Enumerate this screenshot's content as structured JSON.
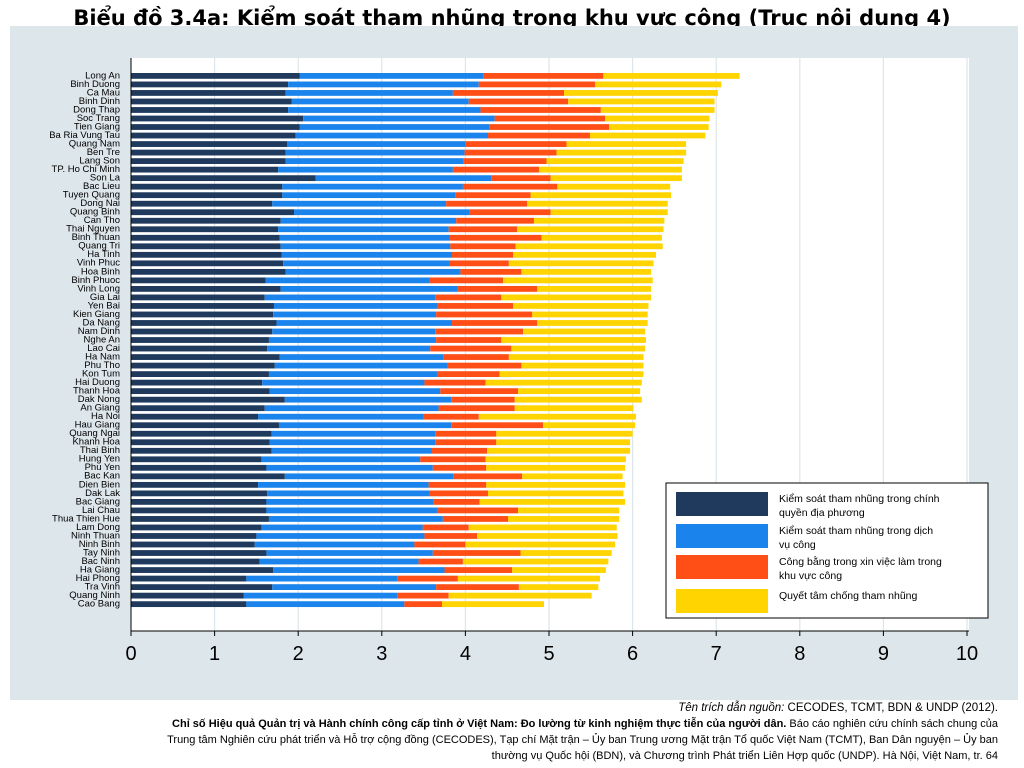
{
  "title": "Biểu đồ 3.4a: Kiểm soát tham nhũng trong khu vực công (Trục nội dung 4)",
  "source": {
    "label": "Tên trích dẫn nguồn:",
    "authors": " CECODES, TCMT, BDN & UNDP (2012).",
    "report_title": "Chỉ số Hiệu quả Quản trị và Hành chính công cấp tỉnh ở Việt Nam: Đo lường từ kinh nghiệm thực tiễn của người dân.",
    "rest1": " Báo cáo nghiên cứu chính sách chung của",
    "line3": "Trung tâm Nghiên cứu phát triển và Hỗ trợ cộng đồng (CECODES), Tạp chí Mặt trận – Ủy ban Trung ương Mặt trận Tổ quốc Việt Nam (TCMT), Ban Dân nguyện – Ủy ban",
    "line4": "thường vụ Quốc hội (BDN), và Chương trình Phát triển Liên Hợp quốc (UNDP). Hà Nội, Việt Nam, tr. 64"
  },
  "chart_data": {
    "type": "bar",
    "orientation": "horizontal",
    "stacked": true,
    "xlim": [
      0,
      10
    ],
    "xticks": [
      0,
      1,
      2,
      3,
      4,
      5,
      6,
      7,
      8,
      9,
      10
    ],
    "grid": true,
    "legend_position": "bottom-right",
    "categories": [
      "Long An",
      "Binh Duong",
      "Ca Mau",
      "Binh Dinh",
      "Dong Thap",
      "Soc Trang",
      "Tien Giang",
      "Ba Ria Vung Tau",
      "Quang Nam",
      "Ben Tre",
      "Lang Son",
      "TP. Ho Chi Minh",
      "Son La",
      "Bac Lieu",
      "Tuyen Quang",
      "Dong Nai",
      "Quang Binh",
      "Can Tho",
      "Thai Nguyen",
      "Binh Thuan",
      "Quang Tri",
      "Ha Tinh",
      "Vinh Phuc",
      "Hoa Binh",
      "Binh Phuoc",
      "Vinh Long",
      "Gia Lai",
      "Yen Bai",
      "Kien Giang",
      "Da Nang",
      "Nam Dinh",
      "Nghe An",
      "Lao Cai",
      "Ha Nam",
      "Phu Tho",
      "Kon Tum",
      "Hai Duong",
      "Thanh Hoa",
      "Dak Nong",
      "An Giang",
      "Ha Noi",
      "Hau Giang",
      "Quang Ngai",
      "Khanh Hoa",
      "Thai Binh",
      "Hung Yen",
      "Phu Yen",
      "Bac Kan",
      "Dien Bien",
      "Dak Lak",
      "Bac Giang",
      "Lai Chau",
      "Thua Thien Hue",
      "Lam Dong",
      "Ninh Thuan",
      "Ninh Binh",
      "Tay Ninh",
      "Bac Ninh",
      "Ha Giang",
      "Hai Phong",
      "Tra Vinh",
      "Quang Ninh",
      "Cao Bang"
    ],
    "series": [
      {
        "name": "Kiểm soát tham nhũng trong chính quyền địa phương",
        "color": "#1f3a5c",
        "values": [
          2.02,
          1.88,
          1.85,
          1.92,
          1.88,
          2.06,
          2.02,
          1.97,
          1.87,
          1.85,
          1.85,
          1.76,
          2.21,
          1.81,
          1.81,
          1.69,
          1.95,
          1.79,
          1.76,
          1.78,
          1.79,
          1.8,
          1.82,
          1.85,
          1.61,
          1.79,
          1.6,
          1.71,
          1.7,
          1.74,
          1.69,
          1.65,
          1.63,
          1.78,
          1.72,
          1.65,
          1.57,
          1.66,
          1.84,
          1.6,
          1.52,
          1.77,
          1.68,
          1.66,
          1.68,
          1.56,
          1.62,
          1.84,
          1.52,
          1.63,
          1.62,
          1.62,
          1.65,
          1.56,
          1.5,
          1.48,
          1.62,
          1.54,
          1.7,
          1.38,
          1.69,
          1.35,
          1.38
        ]
      },
      {
        "name": "Kiểm soát tham nhũng trong dịch vụ công",
        "color": "#1a84ec",
        "values": [
          2.2,
          2.28,
          2.0,
          2.12,
          2.3,
          2.29,
          2.27,
          2.3,
          2.13,
          2.14,
          2.13,
          2.09,
          2.1,
          2.16,
          2.07,
          2.08,
          2.1,
          2.1,
          2.04,
          2.03,
          2.03,
          2.04,
          1.99,
          2.09,
          1.96,
          2.11,
          2.04,
          1.95,
          1.95,
          2.1,
          1.95,
          2.0,
          1.95,
          1.96,
          2.06,
          2.01,
          1.94,
          2.04,
          1.99,
          2.08,
          1.98,
          2.06,
          1.96,
          1.98,
          1.92,
          1.9,
          1.99,
          2.02,
          2.04,
          1.94,
          2.0,
          2.04,
          2.08,
          1.93,
          2.01,
          1.91,
          1.99,
          1.9,
          2.05,
          1.81,
          1.96,
          1.84,
          1.89
        ]
      },
      {
        "name": "Công bằng trong xin việc làm trong khu vực công",
        "color": "#ff4e16",
        "values": [
          1.43,
          1.39,
          1.33,
          1.19,
          1.44,
          1.32,
          1.43,
          1.22,
          1.21,
          1.1,
          0.99,
          1.03,
          0.71,
          1.13,
          0.9,
          0.97,
          0.97,
          0.93,
          0.82,
          1.1,
          0.78,
          0.73,
          0.71,
          0.73,
          0.88,
          0.96,
          0.79,
          0.91,
          1.15,
          1.02,
          1.05,
          0.78,
          0.97,
          0.78,
          0.89,
          0.75,
          0.73,
          0.93,
          0.76,
          0.91,
          0.66,
          1.1,
          0.73,
          0.73,
          0.66,
          0.78,
          0.64,
          0.82,
          0.69,
          0.7,
          0.55,
          0.97,
          0.78,
          0.55,
          0.63,
          0.61,
          1.05,
          0.53,
          0.81,
          0.72,
          0.99,
          0.61,
          0.45
        ]
      },
      {
        "name": "Quyết tâm chống tham nhũng",
        "color": "#ffd400",
        "values": [
          1.63,
          1.51,
          1.84,
          1.75,
          1.36,
          1.25,
          1.19,
          1.38,
          1.43,
          1.55,
          1.64,
          1.71,
          1.57,
          1.35,
          1.68,
          1.68,
          1.4,
          1.56,
          1.75,
          1.44,
          1.76,
          1.71,
          1.73,
          1.55,
          1.79,
          1.36,
          1.79,
          1.62,
          1.38,
          1.32,
          1.46,
          1.73,
          1.6,
          1.61,
          1.46,
          1.72,
          1.87,
          1.46,
          1.52,
          1.42,
          1.88,
          1.1,
          1.63,
          1.6,
          1.71,
          1.68,
          1.66,
          1.2,
          1.66,
          1.62,
          1.74,
          1.21,
          1.33,
          1.77,
          1.68,
          1.79,
          1.09,
          1.74,
          1.12,
          1.7,
          0.95,
          1.71,
          1.22
        ]
      }
    ]
  }
}
